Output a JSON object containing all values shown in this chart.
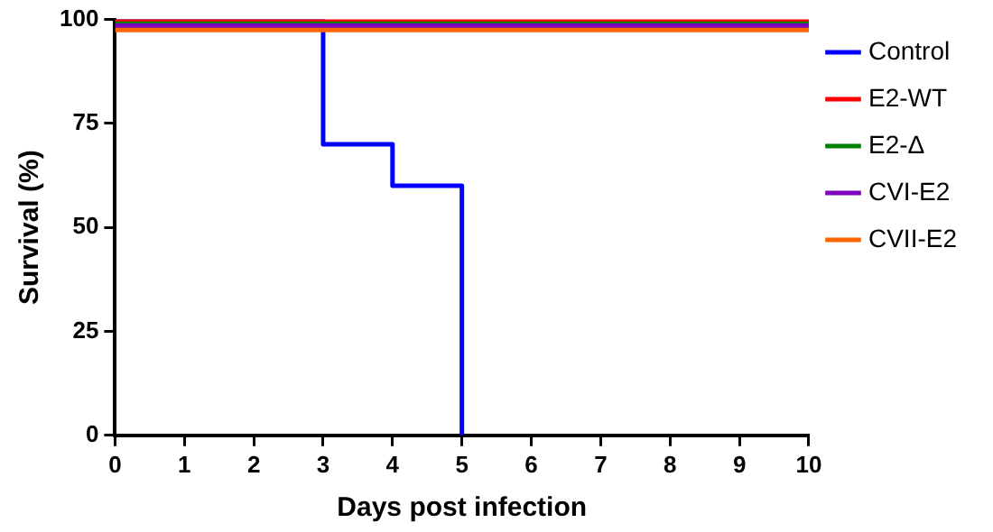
{
  "chart_data": {
    "type": "step",
    "xlabel": "Days post infection",
    "ylabel": "Survival (%)",
    "xlim": [
      0,
      10
    ],
    "xticks": [
      0,
      1,
      2,
      3,
      4,
      5,
      6,
      7,
      8,
      9,
      10
    ],
    "ylim": [
      0,
      100
    ],
    "yticks": [
      0,
      25,
      50,
      75,
      100
    ],
    "grid": false,
    "legend": "right",
    "marker": "none",
    "line_style": "solid",
    "series": [
      {
        "name": "Control",
        "color": "#0000ff",
        "x": [
          0,
          3,
          4,
          5
        ],
        "values": [
          100,
          70,
          60,
          0
        ]
      },
      {
        "name": "E2-WT",
        "color": "#ff0000",
        "x": [
          0,
          10
        ],
        "values": [
          100,
          100
        ]
      },
      {
        "name": "E2-Δ",
        "color": "#008000",
        "x": [
          0,
          10
        ],
        "values": [
          99,
          99
        ]
      },
      {
        "name": "CVI-E2",
        "color": "#7f00bf",
        "x": [
          0,
          10
        ],
        "values": [
          98.5,
          98.5
        ]
      },
      {
        "name": "CVII-E2",
        "color": "#ff6600",
        "x": [
          0,
          10
        ],
        "values": [
          97.5,
          97.5
        ]
      }
    ]
  }
}
